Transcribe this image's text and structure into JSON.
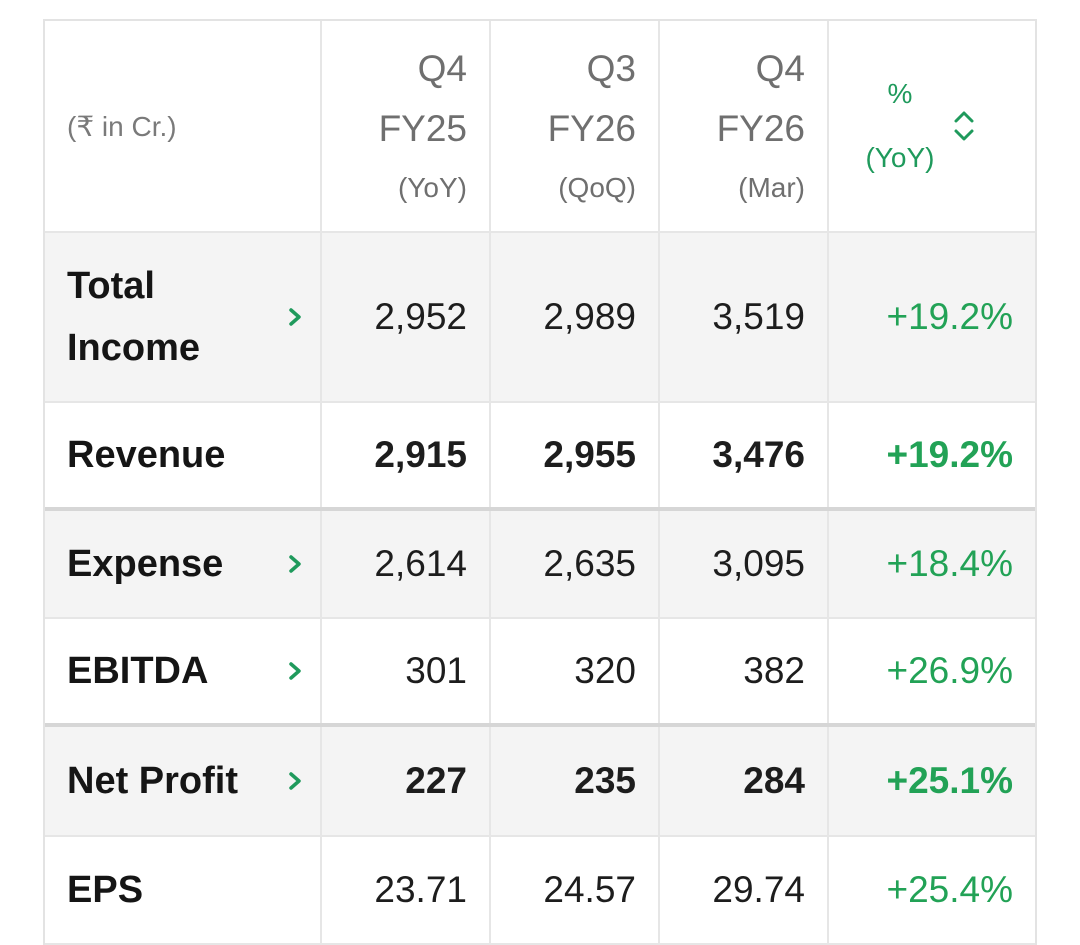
{
  "header": {
    "unit_label": "(₹ in Cr.)",
    "columns": [
      {
        "quarter": "Q4",
        "fy": "FY25",
        "sub": "(YoY)"
      },
      {
        "quarter": "Q3",
        "fy": "FY26",
        "sub": "(QoQ)"
      },
      {
        "quarter": "Q4",
        "fy": "FY26",
        "sub": "(Mar)"
      }
    ],
    "pct_label": "%",
    "pct_sub": "(YoY)"
  },
  "rows": [
    {
      "label_line1": "Total",
      "label_line2": "Income",
      "values": [
        "2,952",
        "2,989",
        "3,519"
      ],
      "pct": "+19.2%"
    },
    {
      "label_line1": "Revenue",
      "values": [
        "2,915",
        "2,955",
        "3,476"
      ],
      "pct": "+19.2%"
    },
    {
      "label_line1": "Expense",
      "values": [
        "2,614",
        "2,635",
        "3,095"
      ],
      "pct": "+18.4%"
    },
    {
      "label_line1": "EBITDA",
      "values": [
        "301",
        "320",
        "382"
      ],
      "pct": "+26.9%"
    },
    {
      "label_line1": "Net Profit",
      "values": [
        "227",
        "235",
        "284"
      ],
      "pct": "+25.1%"
    },
    {
      "label_line1": "EPS",
      "values": [
        "23.71",
        "24.57",
        "29.74"
      ],
      "pct": "+25.4%"
    }
  ],
  "colors": {
    "accent_green": "#1f9a5c",
    "positive_green": "#22a256",
    "row_shade": "#f4f4f4",
    "border": "#e6e6e6"
  },
  "icons": {
    "row_expand": "chevron-right-icon",
    "sort": "sort-updown-icon"
  }
}
